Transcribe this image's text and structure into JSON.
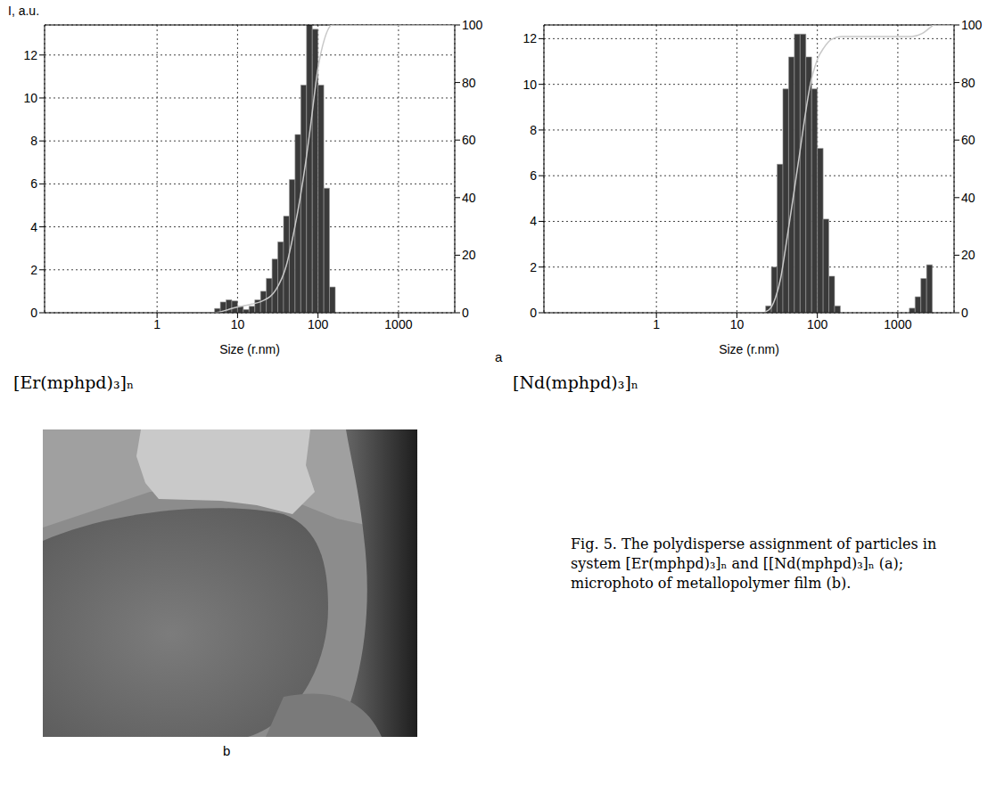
{
  "chart_data": [
    {
      "type": "histogram",
      "title": "[Er(mphpd)₃]ₙ",
      "x_label": "Size (r.nm)",
      "y_label": "I, a.u.",
      "log": "x",
      "grid": true,
      "color": "#3a3a3a",
      "xlim": [
        0.04,
        5000
      ],
      "xticks": [
        1,
        10,
        100,
        1000
      ],
      "ylim": [
        0,
        13.4
      ],
      "yticks": [
        0,
        2,
        4,
        6,
        8,
        10,
        12
      ],
      "y2lim": [
        0,
        100
      ],
      "y2ticks": [
        0,
        20,
        40,
        60,
        80,
        100
      ],
      "bins": [
        5.18,
        6.11,
        7.2,
        8.48,
        10,
        11.79,
        13.89,
        16.38,
        19.31,
        22.76,
        26.83,
        31.62,
        37.28,
        43.94,
        51.79,
        61.05,
        71.97,
        84.83,
        100,
        117.9,
        138.9,
        163.8
      ],
      "counts": [
        0.2,
        0.5,
        0.6,
        0.55,
        0.3,
        0.15,
        0.3,
        0.6,
        1.0,
        1.6,
        2.5,
        3.3,
        4.5,
        6.2,
        8.3,
        10.6,
        13.5,
        13.2,
        10.6,
        5.8,
        1.2
      ],
      "cumulative": {
        "type": "line",
        "axis": "y2",
        "color": "#c8c8c8",
        "x": [
          1,
          5,
          10,
          15,
          20,
          30,
          40,
          50,
          60,
          70,
          80,
          100,
          120,
          150,
          1000,
          5000
        ],
        "values": [
          0,
          0,
          2,
          3,
          4,
          8,
          16,
          28,
          40,
          52,
          64,
          85,
          95,
          100,
          100,
          100
        ]
      }
    },
    {
      "type": "histogram",
      "title": "[Nd(mphpd)₃]ₙ",
      "x_label": "Size (r.nm)",
      "log": "x",
      "grid": true,
      "color": "#3a3a3a",
      "xlim": [
        0.04,
        5000
      ],
      "xticks": [
        1,
        10,
        100,
        1000
      ],
      "ylim": [
        0,
        12.6
      ],
      "yticks": [
        0,
        2,
        4,
        6,
        8,
        10,
        12
      ],
      "y2lim": [
        0,
        100
      ],
      "y2ticks": [
        0,
        20,
        40,
        60,
        80,
        100
      ],
      "bins": [
        22.76,
        26.83,
        31.62,
        37.28,
        43.94,
        51.79,
        61.05,
        71.97,
        84.83,
        100,
        117.9,
        138.9,
        163.8,
        193.1,
        227.6,
        268.3,
        316.2,
        372.8,
        439.4,
        517.9,
        610.5,
        719.7,
        848.3,
        1000,
        1179,
        1389,
        1638,
        1931,
        2276,
        2683
      ],
      "counts": [
        0.3,
        2.0,
        6.5,
        9.8,
        11.2,
        12.2,
        12.2,
        11.2,
        9.8,
        7.2,
        4.1,
        1.6,
        0.3,
        0,
        0,
        0,
        0,
        0,
        0,
        0,
        0,
        0,
        0,
        0,
        0,
        0.2,
        0.7,
        1.5,
        2.1
      ],
      "cumulative": {
        "type": "line",
        "axis": "y2",
        "color": "#c8c8c8",
        "x": [
          1,
          20,
          25,
          30,
          35,
          40,
          50,
          60,
          70,
          80,
          100,
          120,
          150,
          200,
          1500,
          2000,
          2500,
          2800,
          5000
        ],
        "values": [
          0,
          0,
          1,
          5,
          12,
          22,
          40,
          55,
          68,
          78,
          88,
          92,
          95,
          96,
          96,
          97,
          99,
          100,
          100
        ]
      }
    }
  ],
  "panel_labels": [
    "a",
    "b"
  ],
  "caption": "Fig. 5. The polydisperse assignment of particles in system [Er(mphpd)₃]ₙ and [[Nd(mphpd)₃]ₙ (a); microphoto of metallopolymer film (b)."
}
